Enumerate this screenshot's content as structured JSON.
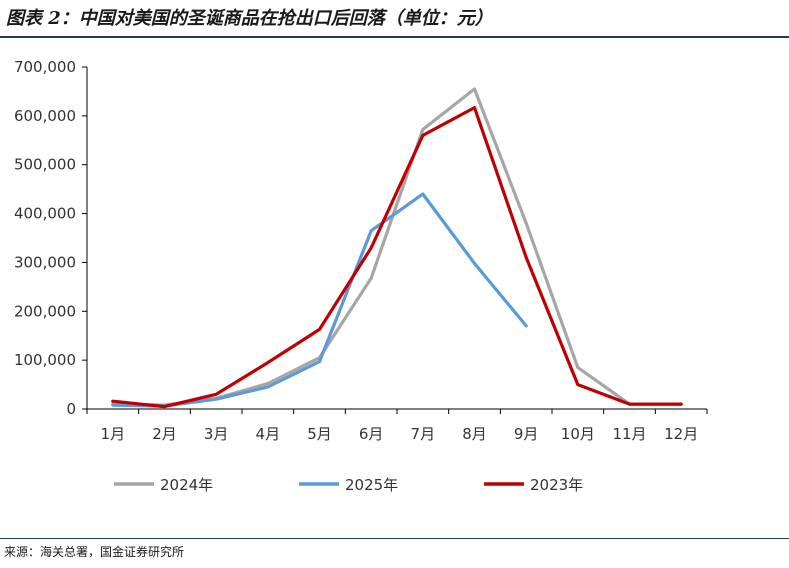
{
  "header": {
    "title": "图表 2：中国对美国的圣诞商品在抢出口后回落（单位：元）"
  },
  "footer": {
    "source": "来源：海关总署，国金证券研究所"
  },
  "chart_data": {
    "type": "line",
    "categories": [
      "1月",
      "2月",
      "3月",
      "4月",
      "5月",
      "6月",
      "7月",
      "8月",
      "9月",
      "10月",
      "11月",
      "12月"
    ],
    "y_tick_labels": [
      "0",
      "100,000",
      "200,000",
      "300,000",
      "400,000",
      "500,000",
      "600,000",
      "700,000"
    ],
    "ylim": [
      0,
      700000
    ],
    "grid": false,
    "legend_position": "bottom",
    "series": [
      {
        "name": "2024年",
        "color": "#a6a6a6",
        "values": [
          10000,
          8000,
          22000,
          52000,
          105000,
          268000,
          572000,
          655000,
          380000,
          85000,
          10000,
          10000
        ]
      },
      {
        "name": "2025年",
        "color": "#5b9bd5",
        "values": [
          8000,
          6000,
          20000,
          45000,
          97000,
          365000,
          440000,
          298000,
          170000,
          null,
          null,
          null
        ]
      },
      {
        "name": "2023年",
        "color": "#c00000",
        "values": [
          16000,
          5000,
          30000,
          95000,
          163000,
          330000,
          560000,
          617000,
          310000,
          50000,
          10000,
          10000
        ]
      }
    ]
  }
}
